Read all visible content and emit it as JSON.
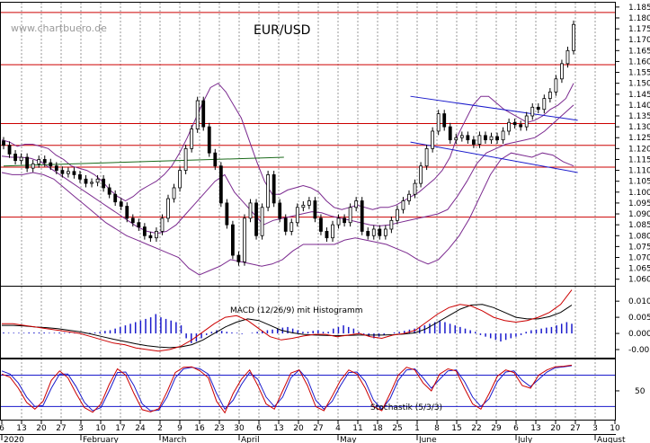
{
  "watermark": "www.chartbuero.de",
  "chart_data": [
    {
      "type": "candlestick",
      "title": "EUR/USD",
      "ylim": [
        1.057,
        1.187
      ],
      "y_ticks": [
        "1.060",
        "1.065",
        "1.070",
        "1.075",
        "1.080",
        "1.085",
        "1.090",
        "1.095",
        "1.100",
        "1.105",
        "1.110",
        "1.115",
        "1.120",
        "1.125",
        "1.130",
        "1.135",
        "1.140",
        "1.145",
        "1.150",
        "1.155",
        "1.160",
        "1.165",
        "1.170",
        "1.175",
        "1.180",
        "1.185"
      ],
      "horizontal_lines": [
        1.0885,
        1.1115,
        1.1215,
        1.1315,
        1.1585,
        1.1825
      ],
      "grid": "vertical dotted",
      "series": [
        {
          "values": [
            1.1215,
            1.1175,
            1.1145,
            1.116,
            1.111,
            1.113,
            1.115,
            1.1135,
            1.112,
            1.11,
            1.1085,
            1.1095,
            1.108,
            1.106,
            1.104,
            1.1045,
            1.106,
            1.102,
            1.099,
            1.0955,
            1.0935,
            1.088,
            1.086,
            1.084,
            1.08,
            1.079,
            1.082,
            1.088,
            1.097,
            1.102,
            1.11,
            1.12,
            1.129,
            1.142,
            1.13,
            1.118,
            1.112,
            1.095,
            1.085,
            1.071,
            1.068,
            1.088,
            1.095,
            1.08,
            1.093,
            1.108,
            1.095,
            1.088,
            1.082,
            1.086,
            1.093,
            1.094,
            1.096,
            1.088,
            1.082,
            1.079,
            1.085,
            1.088,
            1.086,
            1.093,
            1.096,
            1.082,
            1.08,
            1.083,
            1.08,
            1.083,
            1.087,
            1.092,
            1.096,
            1.099,
            1.104,
            1.112,
            1.12,
            1.128,
            1.136,
            1.13,
            1.124,
            1.125,
            1.126,
            1.124,
            1.122,
            1.126,
            1.124,
            1.1255,
            1.124,
            1.128,
            1.132,
            1.131,
            1.13,
            1.135,
            1.139,
            1.138,
            1.143,
            1.146,
            1.152,
            1.159,
            1.165,
            1.177
          ]
        },
        {
          "values": [
            1.124,
            1.123,
            1.121,
            1.122,
            1.122,
            1.121,
            1.12,
            1.117,
            1.115,
            1.112,
            1.111,
            1.11,
            1.108,
            1.105,
            1.101,
            1.098,
            1.096,
            1.098,
            1.101,
            1.103,
            1.105,
            1.108,
            1.112,
            1.118,
            1.125,
            1.133,
            1.141,
            1.148,
            1.15,
            1.146,
            1.14,
            1.134,
            1.124,
            1.114,
            1.105,
            1.099,
            1.099,
            1.101,
            1.102,
            1.103,
            1.102,
            1.1,
            1.096,
            1.093,
            1.092,
            1.093,
            1.094,
            1.093,
            1.092,
            1.093,
            1.093,
            1.094,
            1.096,
            1.098,
            1.1,
            1.103,
            1.106,
            1.11,
            1.116,
            1.126,
            1.133,
            1.14,
            1.144,
            1.144,
            1.141,
            1.138,
            1.136,
            1.134,
            1.132,
            1.133,
            1.135,
            1.138,
            1.14,
            1.143,
            1.15
          ]
        },
        {
          "values": [
            1.1165,
            1.116,
            1.116,
            1.1155,
            1.114,
            1.111,
            1.108,
            1.105,
            1.102,
            1.099,
            1.096,
            1.093,
            1.09,
            1.087,
            1.084,
            1.082,
            1.081,
            1.082,
            1.085,
            1.09,
            1.095,
            1.1,
            1.105,
            1.108,
            1.1,
            1.095,
            1.09,
            1.085,
            1.087,
            1.088,
            1.089,
            1.09,
            1.091,
            1.0905,
            1.089,
            1.088,
            1.087,
            1.086,
            1.085,
            1.0845,
            1.085,
            1.086,
            1.087,
            1.088,
            1.089,
            1.09,
            1.092,
            1.098,
            1.105,
            1.113,
            1.118,
            1.12,
            1.122,
            1.123,
            1.124,
            1.125,
            1.128,
            1.132,
            1.136,
            1.14
          ]
        },
        {
          "values": [
            1.109,
            1.108,
            1.108,
            1.109,
            1.108,
            1.106,
            1.102,
            1.098,
            1.094,
            1.09,
            1.086,
            1.083,
            1.08,
            1.078,
            1.076,
            1.074,
            1.072,
            1.07,
            1.065,
            1.062,
            1.064,
            1.066,
            1.069,
            1.068,
            1.067,
            1.066,
            1.067,
            1.069,
            1.073,
            1.076,
            1.076,
            1.076,
            1.076,
            1.078,
            1.079,
            1.078,
            1.077,
            1.076,
            1.074,
            1.072,
            1.069,
            1.067,
            1.069,
            1.074,
            1.08,
            1.088,
            1.098,
            1.108,
            1.115,
            1.118,
            1.117,
            1.116,
            1.118,
            1.117,
            1.114,
            1.112
          ]
        },
        {
          "x": [
            0,
            50
          ],
          "values": [
            1.112,
            1.116
          ]
        },
        {
          "x": [
            70,
            100
          ],
          "values": [
            1.144,
            1.133
          ]
        },
        {
          "x": [
            70,
            100
          ],
          "values": [
            1.123,
            1.109
          ]
        }
      ]
    },
    {
      "type": "line",
      "title": "MACD (12/26/9) mit Histogramm",
      "ylim": [
        -0.0075,
        0.0145
      ],
      "y_ticks": [
        "-0.005",
        "0.000",
        "0.005",
        "0.010"
      ],
      "series": [
        {
          "values": [
            0.003,
            0.003,
            0.0025,
            0.002,
            0.0015,
            0.001,
            0.0005,
            0.0,
            -0.001,
            -0.002,
            -0.003,
            -0.0035,
            -0.0045,
            -0.005,
            -0.0055,
            -0.005,
            -0.004,
            -0.002,
            0.0005,
            0.003,
            0.005,
            0.0055,
            0.004,
            0.0015,
            -0.001,
            -0.002,
            -0.0015,
            -0.0008,
            -0.0003,
            -0.0003,
            -0.001,
            -0.0005,
            0.0,
            -0.001,
            -0.0015,
            -0.0005,
            0.0,
            0.001,
            0.0035,
            0.006,
            0.008,
            0.009,
            0.0085,
            0.007,
            0.005,
            0.004,
            0.0035,
            0.004,
            0.005,
            0.0065,
            0.009,
            0.0135
          ]
        },
        {
          "values": [
            0.0025,
            0.0025,
            0.0023,
            0.002,
            0.0018,
            0.0015,
            0.001,
            0.0005,
            -0.0002,
            -0.001,
            -0.0018,
            -0.0025,
            -0.0032,
            -0.0038,
            -0.0042,
            -0.0044,
            -0.0042,
            -0.0035,
            -0.002,
            0.0,
            0.002,
            0.0035,
            0.0045,
            0.004,
            0.0025,
            0.001,
            0.0002,
            -0.0003,
            -0.0005,
            -0.0006,
            -0.0007,
            -0.0006,
            -0.0005,
            -0.0005,
            -0.0005,
            -0.0004,
            -0.0002,
            0.0002,
            0.0015,
            0.0035,
            0.0055,
            0.0075,
            0.0088,
            0.009,
            0.008,
            0.0065,
            0.005,
            0.0045,
            0.0045,
            0.0052,
            0.0065,
            0.0088
          ]
        },
        {
          "values": [
            0.0003,
            0.0002,
            0.0002,
            0.0002,
            0.0002,
            0.0003,
            0.0003,
            0.0003,
            0.0003,
            0.0002,
            0.0002,
            0.0003,
            0.0002,
            0.0002,
            0.0002,
            0.0002,
            0.0002,
            0.0002,
            0.0003,
            0.0005,
            0.0008,
            0.001,
            0.0015,
            0.002,
            0.0025,
            0.003,
            0.0035,
            0.004,
            0.0045,
            0.005,
            0.006,
            0.005,
            0.0045,
            0.004,
            0.0035,
            0.0025,
            -0.0015,
            -0.003,
            -0.0025,
            -0.0015,
            -0.0005,
            0.0005,
            0.001,
            0.0008,
            0.0005,
            0.0003,
            0.0002,
            -0.0002,
            0.0,
            0.0002,
            0.0005,
            0.0008,
            0.001,
            0.0012,
            0.0015,
            0.0018,
            0.002,
            0.0015,
            0.001,
            0.0005,
            0.0005,
            0.0008,
            0.001,
            0.0005,
            0.0005,
            0.0015,
            0.002,
            0.0025,
            0.002,
            0.0015,
            0.0005,
            -0.0005,
            -0.001,
            -0.0015,
            -0.001,
            -0.0005,
            0.0,
            0.0003,
            0.0005,
            0.0008,
            0.0012,
            0.0015,
            0.002,
            0.0025,
            0.003,
            0.0035,
            0.004,
            0.0035,
            0.003,
            0.0025,
            0.002,
            0.0015,
            0.001,
            0.0005,
            -0.0005,
            -0.001,
            -0.0015,
            -0.002,
            -0.0025,
            -0.002,
            -0.0015,
            -0.001,
            -0.0005,
            0.0005,
            0.001,
            0.0012,
            0.0015,
            0.0018,
            0.002,
            0.0025,
            0.003,
            0.0035,
            0.003
          ]
        }
      ]
    },
    {
      "type": "line",
      "title": "Stochastik (5/3/3)",
      "ylim": [
        -5,
        110
      ],
      "y_ticks": [
        "50"
      ],
      "horizontal_lines": [
        20,
        80
      ],
      "series": [
        {
          "values": [
            82,
            76,
            55,
            28,
            15,
            30,
            70,
            88,
            75,
            45,
            18,
            9,
            25,
            62,
            92,
            80,
            45,
            14,
            10,
            16,
            48,
            85,
            95,
            96,
            88,
            75,
            30,
            8,
            45,
            72,
            90,
            60,
            25,
            15,
            50,
            84,
            90,
            60,
            20,
            12,
            40,
            70,
            90,
            82,
            55,
            20,
            12,
            45,
            80,
            95,
            90,
            65,
            50,
            82,
            92,
            88,
            55,
            25,
            15,
            45,
            78,
            90,
            85,
            60,
            55,
            80,
            90,
            96,
            97,
            99
          ]
        },
        {
          "values": [
            88,
            82,
            65,
            38,
            20,
            22,
            55,
            82,
            82,
            58,
            28,
            12,
            18,
            50,
            85,
            86,
            60,
            25,
            12,
            13,
            38,
            75,
            92,
            95,
            92,
            82,
            45,
            15,
            32,
            62,
            85,
            72,
            38,
            20,
            38,
            75,
            90,
            72,
            32,
            15,
            30,
            60,
            85,
            86,
            68,
            32,
            15,
            35,
            70,
            90,
            92,
            75,
            55,
            72,
            88,
            90,
            68,
            38,
            20,
            35,
            68,
            86,
            88,
            70,
            58,
            72,
            86,
            94,
            96,
            98
          ]
        }
      ]
    }
  ],
  "x_axis": {
    "day_labels": [
      "6",
      "13",
      "20",
      "27",
      "3",
      "10",
      "17",
      "24",
      "2",
      "9",
      "16",
      "23",
      "30",
      "6",
      "13",
      "20",
      "27",
      "4",
      "11",
      "18",
      "25",
      "1",
      "8",
      "15",
      "22",
      "29",
      "6",
      "13",
      "20",
      "27",
      "3",
      "10"
    ],
    "month_labels": [
      "2020",
      "February",
      "March",
      "April",
      "May",
      "June",
      "July",
      "August"
    ]
  },
  "colors": {
    "candle_up": "#ffffff",
    "candle_down": "#000000",
    "bollinger": "#7b2a8f",
    "resistance": "#cc0000",
    "grid": "#9a9a9a",
    "macd": "#cc0000",
    "signal": "#000000",
    "histogram": "#1a1acc",
    "stoch_k": "#cc0000",
    "stoch_d": "#1a1acc",
    "stoch_levels": "#1a1acc",
    "moving_average": "#1a6a1a",
    "trend_channel": "#1a1acc"
  },
  "icons": []
}
